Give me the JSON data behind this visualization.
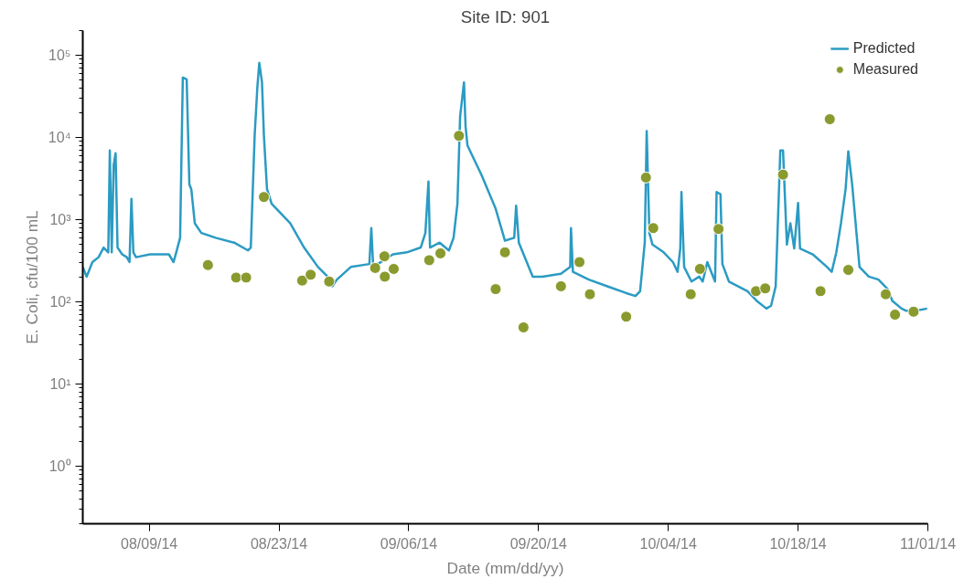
{
  "chart_data": {
    "type": "line",
    "title": "Site ID: 901",
    "xlabel": "Date (mm/dd/yy)",
    "ylabel": "E. Coli, cfu/100 mL",
    "log": true,
    "grid": false,
    "legend": "top right",
    "xlim": [
      "2014-08-01T20:00",
      "2014-11-01T00:00"
    ],
    "xticks": [
      {
        "value": "2014-08-09",
        "label": "08/09/14"
      },
      {
        "value": "2014-08-23",
        "label": "08/23/14"
      },
      {
        "value": "2014-09-06",
        "label": "09/06/14"
      },
      {
        "value": "2014-09-20",
        "label": "09/20/14"
      },
      {
        "value": "2014-10-04",
        "label": "10/04/14"
      },
      {
        "value": "2014-10-18",
        "label": "10/18/14"
      },
      {
        "value": "2014-11-01",
        "label": "11/01/14"
      }
    ],
    "ylim": [
      0.2,
      200000
    ],
    "yticks": [
      {
        "value": 1,
        "label": "10⁰"
      },
      {
        "value": 10,
        "label": "10¹"
      },
      {
        "value": 100,
        "label": "10²"
      },
      {
        "value": 1000,
        "label": "10³"
      },
      {
        "value": 10000,
        "label": "10⁴"
      },
      {
        "value": 100000,
        "label": "10⁵"
      }
    ],
    "series": [
      {
        "name": "Predicted",
        "type": "line",
        "marker": "none",
        "line_style": "solid",
        "color": "#2b9bc3",
        "x": [
          "2014-08-01T20:00",
          "2014-08-02T06:00",
          "2014-08-02T21:00",
          "2014-08-03T13:00",
          "2014-08-04T02:00",
          "2014-08-04T14:00",
          "2014-08-04T18:00",
          "2014-08-04T23:00",
          "2014-08-05T04:00",
          "2014-08-05T09:00",
          "2014-08-05T14:00",
          "2014-08-06T02:00",
          "2014-08-06T14:00",
          "2014-08-06T21:00",
          "2014-08-07T02:00",
          "2014-08-07T07:00",
          "2014-08-07T14:00",
          "2014-08-09T02:00",
          "2014-08-11T03:00",
          "2014-08-11T15:00",
          "2014-08-11T22:00",
          "2014-08-12T08:00",
          "2014-08-12T15:00",
          "2014-08-13T01:00",
          "2014-08-13T08:00",
          "2014-08-13T13:00",
          "2014-08-13T22:00",
          "2014-08-14T15:00",
          "2014-08-16T04:00",
          "2014-08-18T04:00",
          "2014-08-19T16:00",
          "2014-08-19T23:00",
          "2014-08-20T09:00",
          "2014-08-20T16:00",
          "2014-08-20T21:00",
          "2014-08-21T04:00",
          "2014-08-21T09:00",
          "2014-08-21T17:00",
          "2014-08-22T05:00",
          "2014-08-24T05:00",
          "2014-08-25T17:00",
          "2014-08-27T05:00",
          "2014-08-28T06:00",
          "2014-08-28T18:00",
          "2014-08-29T06:00",
          "2014-08-30T18:00",
          "2014-09-01T18:00",
          "2014-09-01T23:00",
          "2014-09-02T04:00",
          "2014-09-04T07:00",
          "2014-09-05T19:00",
          "2014-09-07T07:00",
          "2014-09-07T19:00",
          "2014-09-08T03:00",
          "2014-09-08T07:00",
          "2014-09-09T08:00",
          "2014-09-10T08:00",
          "2014-09-10T20:00",
          "2014-09-11T06:00",
          "2014-09-11T13:00",
          "2014-09-11T23:00",
          "2014-09-12T03:00",
          "2014-09-12T08:00",
          "2014-09-12T20:00",
          "2014-09-13T20:00",
          "2014-09-15T09:00",
          "2014-09-16T09:00",
          "2014-09-17T09:00",
          "2014-09-17T14:00",
          "2014-09-17T21:00",
          "2014-09-19T09:00",
          "2014-09-20T10:00",
          "2014-09-22T10:00",
          "2014-09-23T10:00",
          "2014-09-23T12:00",
          "2014-09-23T17:00",
          "2014-09-25T10:00",
          "2014-09-27T10:00",
          "2014-09-29T11:00",
          "2014-09-30T11:00",
          "2014-09-30T23:00",
          "2014-10-01T11:00",
          "2014-10-01T16:00",
          "2014-10-01T23:00",
          "2014-10-02T07:00",
          "2014-10-03T12:00",
          "2014-10-04T12:00",
          "2014-10-05T00:00",
          "2014-10-05T07:00",
          "2014-10-05T10:00",
          "2014-10-05T17:00",
          "2014-10-06T12:00",
          "2014-10-07T08:00",
          "2014-10-07T17:00",
          "2014-10-08T05:00",
          "2014-10-09T01:00",
          "2014-10-09T05:00",
          "2014-10-09T15:00",
          "2014-10-09T20:00",
          "2014-10-10T13:00",
          "2014-10-12T13:00",
          "2014-10-13T13:00",
          "2014-10-14T14:00",
          "2014-10-15T02:00",
          "2014-10-15T14:00",
          "2014-10-16T02:00",
          "2014-10-16T09:00",
          "2014-10-16T19:00",
          "2014-10-17T04:00",
          "2014-10-17T14:00",
          "2014-10-18T00:00",
          "2014-10-18T05:00",
          "2014-10-19T14:00",
          "2014-10-21T03:00",
          "2014-10-21T15:00",
          "2014-10-22T03:00",
          "2014-10-22T15:00",
          "2014-10-23T03:00",
          "2014-10-23T10:00",
          "2014-10-23T20:00",
          "2014-10-24T15:00",
          "2014-10-25T15:00",
          "2014-10-26T16:00",
          "2014-10-27T16:00",
          "2014-10-28T04:00",
          "2014-10-29T04:00",
          "2014-10-29T16:00",
          "2014-10-30T16:00",
          "2014-10-31T22:00"
        ],
        "values": [
          266,
          203,
          305,
          350,
          459,
          401,
          6980,
          401,
          4640,
          6440,
          459,
          379,
          350,
          305,
          1790,
          401,
          350,
          379,
          379,
          305,
          401,
          603,
          53700,
          50900,
          2690,
          2350,
          906,
          690,
          603,
          526,
          423,
          459,
          10500,
          40900,
          80900,
          46900,
          10500,
          2350,
          1560,
          906,
          459,
          266,
          203,
          155,
          187,
          266,
          289,
          791,
          266,
          379,
          401,
          459,
          690,
          2920,
          459,
          526,
          423,
          603,
          1560,
          18100,
          46900,
          13800,
          8000,
          6090,
          3530,
          1360,
          556,
          603,
          1480,
          526,
          203,
          203,
          220,
          266,
          791,
          232,
          187,
          155,
          128,
          118,
          135,
          526,
          12000,
          690,
          498,
          401,
          305,
          232,
          447,
          2170,
          266,
          177,
          203,
          177,
          305,
          177,
          2170,
          2050,
          289,
          177,
          135,
          103,
          83,
          90,
          155,
          6980,
          6980,
          498,
          906,
          447,
          1600,
          447,
          379,
          266,
          232,
          401,
          906,
          2350,
          6800,
          2690,
          266,
          203,
          187,
          143,
          103,
          83,
          78,
          78,
          83
        ]
      },
      {
        "name": "Measured",
        "type": "scatter",
        "marker": "circle",
        "color": "#8a9a2e",
        "x": [
          "2014-08-15T08:00",
          "2014-08-18T09:00",
          "2014-08-19T11:00",
          "2014-08-21T09:00",
          "2014-08-25T12:00",
          "2014-08-26T10:00",
          "2014-08-28T10:00",
          "2014-09-02T09:00",
          "2014-09-03T09:00",
          "2014-09-03T10:00",
          "2014-09-04T09:00",
          "2014-09-08T05:00",
          "2014-09-09T10:00",
          "2014-09-11T10:00",
          "2014-09-15T09:00",
          "2014-09-16T09:00",
          "2014-09-18T09:00",
          "2014-09-22T10:00",
          "2014-09-24T10:00",
          "2014-09-25T13:00",
          "2014-09-29T11:00",
          "2014-10-01T14:00",
          "2014-10-02T09:00",
          "2014-10-06T10:00",
          "2014-10-07T10:00",
          "2014-10-09T10:00",
          "2014-10-13T11:00",
          "2014-10-14T11:00",
          "2014-10-16T09:00",
          "2014-10-20T10:00",
          "2014-10-21T10:00",
          "2014-10-23T10:00",
          "2014-10-27T11:00",
          "2014-10-28T11:00",
          "2014-10-30T11:00"
        ],
        "values": [
          281,
          198,
          198,
          1890,
          182,
          214,
          177,
          259,
          359,
          203,
          252,
          322,
          390,
          10500,
          143,
          401,
          49,
          155,
          305,
          124,
          66,
          3260,
          791,
          124,
          252,
          770,
          135,
          146,
          3540,
          135,
          16700,
          245,
          124,
          70,
          76
        ]
      }
    ]
  }
}
